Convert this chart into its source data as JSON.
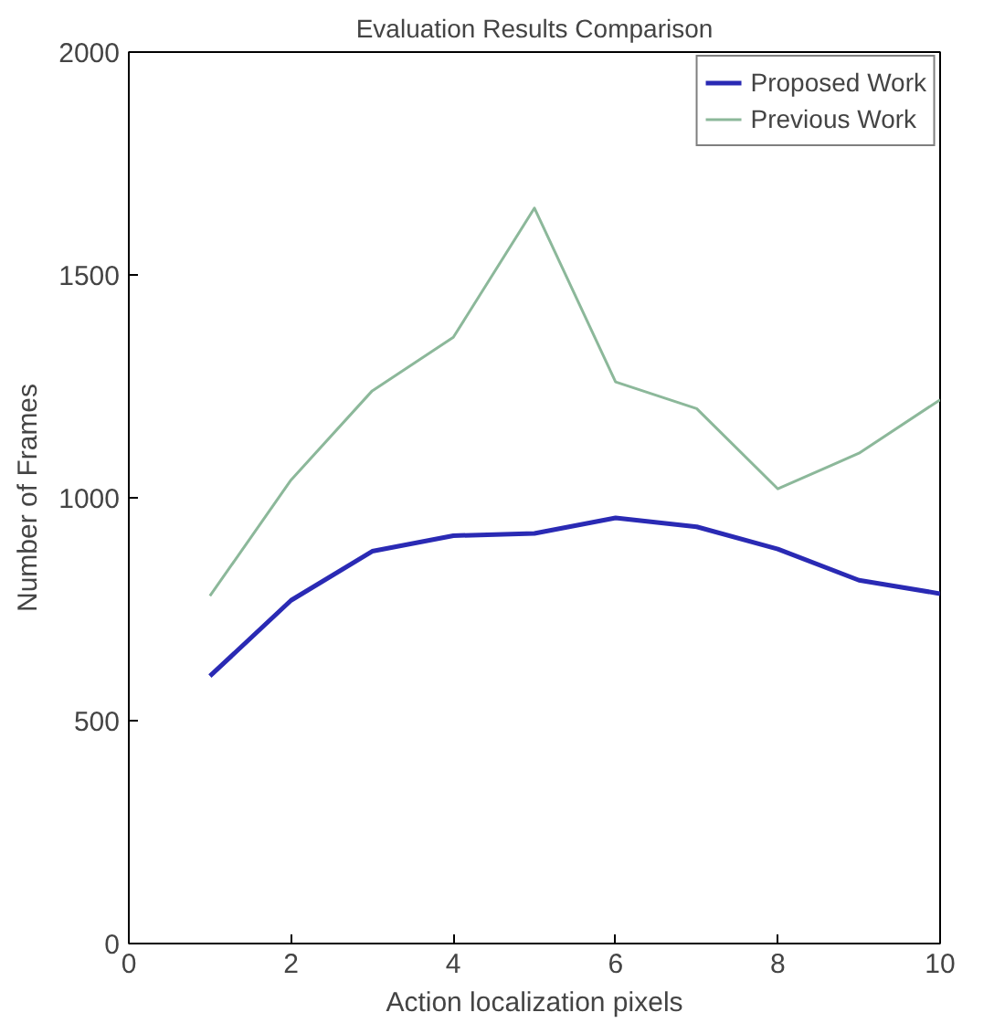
{
  "chart_data": {
    "type": "line",
    "title": "Evaluation Results Comparison",
    "xlabel": "Action localization pixels",
    "ylabel": "Number of Frames",
    "x": [
      1,
      2,
      3,
      4,
      5,
      6,
      7,
      8,
      9,
      10
    ],
    "series": [
      {
        "name": "Proposed Work",
        "color": "#2a2ab4",
        "values": [
          600,
          770,
          880,
          915,
          920,
          955,
          935,
          885,
          815,
          785
        ]
      },
      {
        "name": "Previous Work",
        "color": "#8cb89a",
        "values": [
          780,
          1040,
          1240,
          1360,
          1650,
          1260,
          1200,
          1020,
          1100,
          1220
        ]
      }
    ],
    "xlim": [
      0,
      10
    ],
    "ylim": [
      0,
      2000
    ],
    "xticks": [
      0,
      2,
      4,
      6,
      8,
      10
    ],
    "yticks": [
      0,
      500,
      1000,
      1500,
      2000
    ],
    "grid": false,
    "legend": "top right",
    "marker": "none",
    "line_style": "solid"
  }
}
